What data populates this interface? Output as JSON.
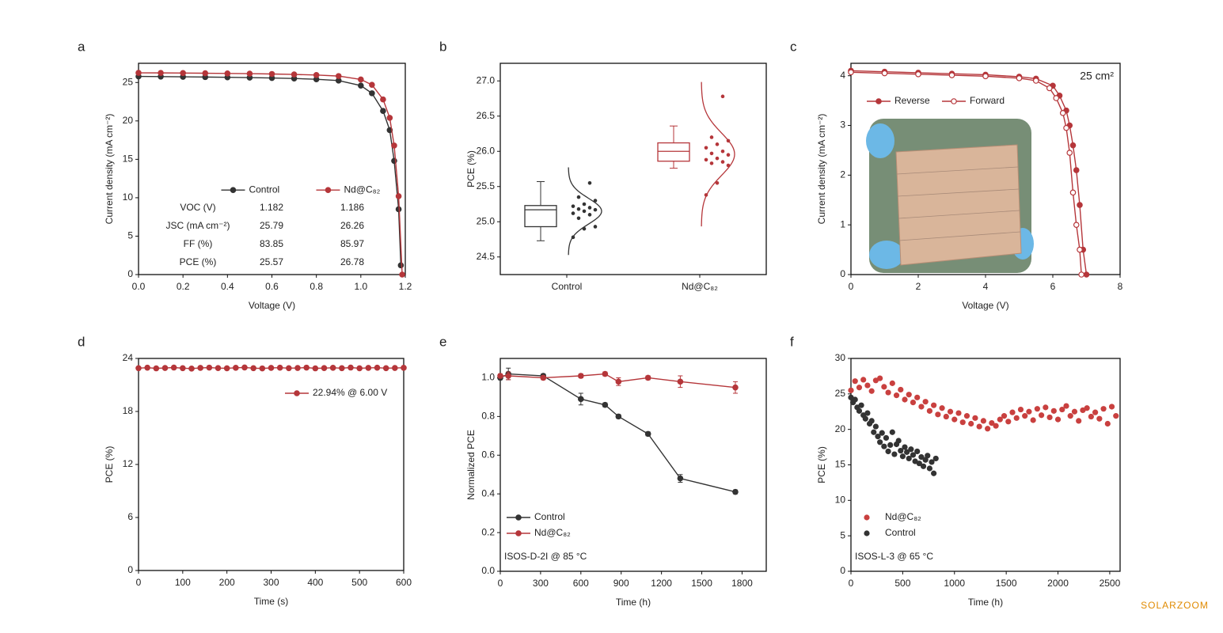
{
  "watermark": "SOLARZOOM",
  "chart_data": [
    {
      "label": "a",
      "type": "line",
      "xlabel": "Voltage (V)",
      "ylabel": "Current density (mA cm⁻²)",
      "xlim": [
        0,
        1.2
      ],
      "ylim": [
        0,
        27.5
      ],
      "xticks": [
        {
          "value": 0,
          "label": "0.0"
        },
        0.2,
        0.4,
        0.6,
        0.8,
        {
          "value": 1,
          "label": "1.0"
        },
        1.2
      ],
      "yticks": [
        0,
        5,
        10,
        15,
        20,
        25
      ],
      "legend": "center",
      "series": [
        {
          "name": "Control",
          "color": "#333333",
          "x": [
            0,
            0.1,
            0.2,
            0.3,
            0.4,
            0.5,
            0.6,
            0.7,
            0.8,
            0.9,
            1.0,
            1.05,
            1.1,
            1.13,
            1.15,
            1.17,
            1.18
          ],
          "values": [
            25.79,
            25.77,
            25.74,
            25.71,
            25.68,
            25.64,
            25.59,
            25.52,
            25.42,
            25.25,
            24.6,
            23.6,
            21.3,
            18.8,
            14.8,
            8.5,
            1.2
          ]
        },
        {
          "name": "Nd@C₈₂",
          "color": "#b5363a",
          "x": [
            0,
            0.1,
            0.2,
            0.3,
            0.4,
            0.5,
            0.6,
            0.7,
            0.8,
            0.9,
            1.0,
            1.05,
            1.1,
            1.13,
            1.15,
            1.17,
            1.186
          ],
          "values": [
            26.26,
            26.25,
            26.23,
            26.21,
            26.18,
            26.15,
            26.11,
            26.05,
            25.97,
            25.84,
            25.4,
            24.7,
            22.8,
            20.4,
            16.8,
            10.2,
            0
          ]
        }
      ],
      "table": {
        "rows": [
          [
            "VOC (V)",
            "1.182",
            "1.186"
          ],
          [
            "JSC (mA cm⁻²)",
            "25.79",
            "26.26"
          ],
          [
            "FF (%)",
            "83.85",
            "85.97"
          ],
          [
            "PCE (%)",
            "25.57",
            "26.78"
          ]
        ]
      }
    },
    {
      "label": "b",
      "type": "box",
      "ylabel": "PCE (%)",
      "ylim": [
        24.25,
        27.25
      ],
      "yticks": [
        24.5,
        {
          "value": 25,
          "label": "25.0"
        },
        25.5,
        {
          "value": 26,
          "label": "26.0"
        },
        26.5,
        {
          "value": 27,
          "label": "27.0"
        }
      ],
      "categories": [
        "Control",
        "Nd@C₈₂"
      ],
      "colors": [
        "#333333",
        "#b5363a"
      ],
      "boxes": [
        {
          "whislo": 24.73,
          "q1": 24.93,
          "med": 25.17,
          "q3": 25.23,
          "whishi": 25.57
        },
        {
          "whislo": 25.76,
          "q1": 25.86,
          "med": 26.0,
          "q3": 26.12,
          "whishi": 26.36
        }
      ],
      "points": [
        [
          24.78,
          24.9,
          24.93,
          25.05,
          25.1,
          25.12,
          25.15,
          25.17,
          25.18,
          25.2,
          25.22,
          25.25,
          25.3,
          25.35,
          25.55
        ],
        [
          25.38,
          25.55,
          25.8,
          25.83,
          25.85,
          25.88,
          25.9,
          25.95,
          25.97,
          26.0,
          26.05,
          26.1,
          26.15,
          26.2,
          26.78
        ]
      ]
    },
    {
      "label": "c",
      "type": "line",
      "xlabel": "Voltage (V)",
      "ylabel": "Current density (mA cm⁻²)",
      "xlim": [
        0,
        8
      ],
      "ylim": [
        0,
        4.25
      ],
      "xticks": [
        0,
        2,
        4,
        6,
        8
      ],
      "yticks": [
        0,
        1,
        2,
        3,
        4
      ],
      "legend": "upper left",
      "annotation": "25 cm²",
      "annotation_loc": "upper right",
      "series": [
        {
          "name": "Reverse",
          "color": "#b5363a",
          "marker": "filled",
          "x": [
            0,
            1,
            2,
            3,
            4,
            5,
            5.5,
            6,
            6.2,
            6.4,
            6.5,
            6.6,
            6.7,
            6.8,
            6.9,
            7.0
          ],
          "values": [
            4.1,
            4.08,
            4.06,
            4.04,
            4.02,
            3.98,
            3.94,
            3.8,
            3.6,
            3.3,
            3.0,
            2.6,
            2.1,
            1.4,
            0.5,
            0
          ]
        },
        {
          "name": "Forward",
          "color": "#b5363a",
          "marker": "open",
          "x": [
            0,
            1,
            2,
            3,
            4,
            5,
            5.5,
            5.9,
            6.1,
            6.3,
            6.4,
            6.5,
            6.6,
            6.7,
            6.8,
            6.85
          ],
          "values": [
            4.07,
            4.05,
            4.03,
            4.01,
            3.99,
            3.95,
            3.9,
            3.75,
            3.55,
            3.25,
            2.95,
            2.45,
            1.65,
            1.0,
            0.5,
            0
          ]
        }
      ]
    },
    {
      "label": "d",
      "type": "line",
      "xlabel": "Time (s)",
      "ylabel": "PCE (%)",
      "xlim": [
        0,
        600
      ],
      "ylim": [
        0,
        24
      ],
      "xticks": [
        0,
        100,
        200,
        300,
        400,
        500,
        600
      ],
      "yticks": [
        0,
        6,
        12,
        18,
        24
      ],
      "legend": "upper right",
      "series": [
        {
          "name": "22.94% @ 6.00 V",
          "color": "#b5363a",
          "x": [
            0,
            20,
            40,
            60,
            80,
            100,
            120,
            140,
            160,
            180,
            200,
            220,
            240,
            260,
            280,
            300,
            320,
            340,
            360,
            380,
            400,
            420,
            440,
            460,
            480,
            500,
            520,
            540,
            560,
            580,
            600
          ],
          "values": [
            22.9,
            22.95,
            22.88,
            22.92,
            22.97,
            22.9,
            22.85,
            22.93,
            22.96,
            22.91,
            22.89,
            22.94,
            22.98,
            22.9,
            22.87,
            22.93,
            22.95,
            22.9,
            22.92,
            22.96,
            22.88,
            22.91,
            22.94,
            22.9,
            22.97,
            22.89,
            22.93,
            22.95,
            22.9,
            22.92,
            22.94
          ]
        }
      ]
    },
    {
      "label": "e",
      "type": "line",
      "xlabel": "Time (h)",
      "ylabel": "Normalized PCE",
      "xlim": [
        0,
        1980
      ],
      "ylim": [
        0,
        1.1
      ],
      "xticks": [
        0,
        300,
        600,
        900,
        1200,
        1500,
        1800
      ],
      "yticks": [
        {
          "value": 0,
          "label": "0.0"
        },
        0.2,
        0.4,
        0.6,
        0.8,
        {
          "value": 1,
          "label": "1.0"
        }
      ],
      "legend": "lower left",
      "annotation": "ISOS-D-2I @ 85 °C",
      "annotation_loc": "lower left",
      "series": [
        {
          "name": "Control",
          "color": "#333333",
          "x": [
            0,
            60,
            320,
            600,
            780,
            880,
            1100,
            1340,
            1750
          ],
          "values": [
            1.0,
            1.02,
            1.01,
            0.89,
            0.86,
            0.8,
            0.71,
            0.48,
            0.41
          ],
          "errors": [
            0.01,
            0.03,
            0.01,
            0.03,
            0.01,
            0.01,
            0.01,
            0.02,
            0.01
          ]
        },
        {
          "name": "Nd@C₈₂",
          "color": "#b5363a",
          "x": [
            0,
            60,
            320,
            600,
            780,
            880,
            1100,
            1340,
            1750
          ],
          "values": [
            1.01,
            1.01,
            1.0,
            1.01,
            1.02,
            0.98,
            1.0,
            0.98,
            0.95
          ],
          "errors": [
            0.01,
            0.02,
            0.01,
            0.01,
            0.01,
            0.02,
            0.01,
            0.03,
            0.03
          ]
        }
      ]
    },
    {
      "label": "f",
      "type": "scatter",
      "xlabel": "Time (h)",
      "ylabel": "PCE (%)",
      "xlim": [
        0,
        2600
      ],
      "ylim": [
        0,
        30
      ],
      "xticks": [
        0,
        500,
        1000,
        1500,
        2000,
        2500
      ],
      "yticks": [
        0,
        5,
        10,
        15,
        20,
        25,
        30
      ],
      "legend": "lower left",
      "annotation": "ISOS-L-3 @ 65 °C",
      "annotation_loc": "lower left",
      "series": [
        {
          "name": "Nd@C₈₂",
          "color": "#c9403f",
          "x": [
            0,
            40,
            80,
            120,
            160,
            200,
            240,
            280,
            320,
            360,
            400,
            440,
            480,
            520,
            560,
            600,
            640,
            680,
            720,
            760,
            800,
            840,
            880,
            920,
            960,
            1000,
            1040,
            1080,
            1120,
            1160,
            1200,
            1240,
            1280,
            1320,
            1360,
            1400,
            1440,
            1480,
            1520,
            1560,
            1600,
            1640,
            1680,
            1720,
            1760,
            1800,
            1840,
            1880,
            1920,
            1960,
            2000,
            2040,
            2080,
            2120,
            2160,
            2200,
            2240,
            2280,
            2320,
            2360,
            2400,
            2440,
            2480,
            2520,
            2560
          ],
          "values": [
            25.5,
            26.8,
            25.9,
            27.0,
            26.2,
            25.4,
            26.9,
            27.2,
            26.0,
            25.2,
            26.5,
            24.8,
            25.6,
            24.2,
            24.9,
            23.8,
            24.5,
            23.2,
            23.9,
            22.6,
            23.4,
            22.1,
            23.0,
            21.8,
            22.5,
            21.4,
            22.3,
            21.0,
            21.9,
            20.8,
            21.6,
            20.4,
            21.2,
            20.1,
            20.9,
            20.5,
            21.4,
            21.9,
            21.1,
            22.4,
            21.6,
            22.8,
            21.9,
            22.5,
            21.3,
            22.9,
            22.0,
            23.1,
            21.7,
            22.6,
            21.4,
            22.8,
            23.3,
            21.9,
            22.5,
            21.2,
            22.7,
            23.0,
            21.8,
            22.4,
            21.5,
            22.9,
            20.8,
            23.2,
            21.9
          ]
        },
        {
          "name": "Control",
          "color": "#333333",
          "x": [
            0,
            20,
            40,
            60,
            80,
            100,
            120,
            140,
            160,
            180,
            200,
            220,
            240,
            260,
            280,
            300,
            320,
            340,
            360,
            380,
            400,
            420,
            440,
            460,
            480,
            500,
            520,
            540,
            560,
            580,
            600,
            620,
            640,
            660,
            680,
            700,
            720,
            740,
            760,
            780,
            800,
            820
          ],
          "values": [
            24.5,
            23.8,
            24.2,
            23.1,
            22.6,
            23.4,
            22.0,
            21.5,
            22.3,
            20.8,
            21.2,
            19.6,
            20.4,
            19.0,
            18.2,
            19.5,
            17.6,
            18.8,
            16.9,
            17.8,
            19.6,
            16.5,
            17.9,
            18.4,
            17.0,
            16.2,
            17.5,
            16.8,
            15.9,
            17.2,
            16.4,
            15.5,
            16.9,
            15.2,
            16.1,
            14.8,
            15.7,
            16.3,
            14.5,
            15.4,
            13.8,
            15.9
          ]
        }
      ]
    }
  ]
}
